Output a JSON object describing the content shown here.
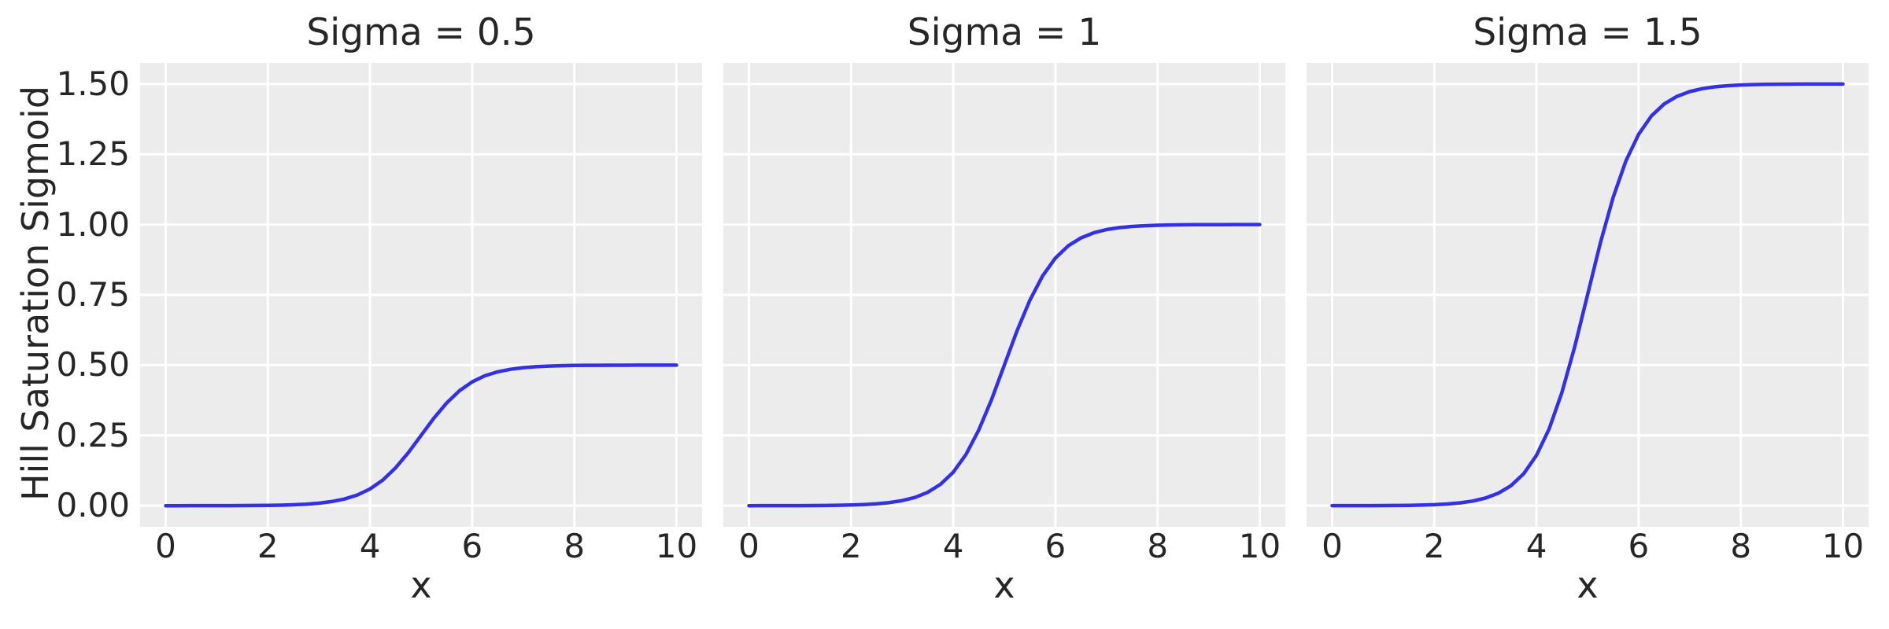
{
  "chart_data": {
    "type": "line",
    "subplot_layout": "1 row x 3 columns, shared y-axis",
    "x_label": "x",
    "y_label": "Hill Saturation Sigmoid",
    "x_ticks": [
      0,
      2,
      4,
      6,
      8,
      10
    ],
    "x_tick_labels": [
      "0",
      "2",
      "4",
      "6",
      "8",
      "10"
    ],
    "y_ticks": [
      0,
      0.25,
      0.5,
      0.75,
      1.0,
      1.25,
      1.5
    ],
    "y_tick_labels": [
      "0.00",
      "0.25",
      "0.50",
      "0.75",
      "1.00",
      "1.25",
      "1.50"
    ],
    "xlim": [
      -0.5,
      10.5
    ],
    "ylim": [
      -0.075,
      1.575
    ],
    "grid": true,
    "legend": "none",
    "style": {
      "figure_bg": "#ffffff",
      "plot_bg": "#ececec",
      "grid_color": "#ffffff",
      "line_color": "#3430e3",
      "text_color": "#262626"
    },
    "x": [
      0,
      0.25,
      0.5,
      0.75,
      1,
      1.25,
      1.5,
      1.75,
      2,
      2.25,
      2.5,
      2.75,
      3,
      3.25,
      3.5,
      3.75,
      4,
      4.25,
      4.5,
      4.75,
      5,
      5.25,
      5.5,
      5.75,
      6,
      6.25,
      6.5,
      6.75,
      7,
      7.25,
      7.5,
      7.75,
      8,
      8.25,
      8.5,
      8.75,
      9,
      9.25,
      9.5,
      9.75,
      10
    ],
    "subplots": [
      {
        "title": "Sigma = 0.5",
        "sigma": 0.5,
        "y": [
          0.0,
          0.0,
          0.0001,
          0.0001,
          0.0002,
          0.0003,
          0.0005,
          0.0007,
          0.0012,
          0.002,
          0.0033,
          0.0055,
          0.009,
          0.0147,
          0.0237,
          0.0379,
          0.0596,
          0.0912,
          0.1345,
          0.1888,
          0.25,
          0.3112,
          0.3655,
          0.4088,
          0.4404,
          0.4621,
          0.4763,
          0.4853,
          0.491,
          0.4945,
          0.4967,
          0.498,
          0.4988,
          0.4993,
          0.4995,
          0.4997,
          0.4998,
          0.4999,
          0.4999,
          0.5,
          0.5
        ]
      },
      {
        "title": "Sigma = 1",
        "sigma": 1,
        "y": [
          0.0,
          0.0001,
          0.0001,
          0.0002,
          0.0003,
          0.0006,
          0.0009,
          0.0015,
          0.0025,
          0.0041,
          0.0067,
          0.011,
          0.018,
          0.0293,
          0.0474,
          0.0759,
          0.1192,
          0.1824,
          0.2689,
          0.3775,
          0.5,
          0.6225,
          0.7311,
          0.8176,
          0.8808,
          0.9241,
          0.9526,
          0.9707,
          0.982,
          0.989,
          0.9933,
          0.9959,
          0.9975,
          0.9985,
          0.9991,
          0.9994,
          0.9997,
          0.9998,
          0.9999,
          0.9999,
          1.0
        ]
      },
      {
        "title": "Sigma = 1.5",
        "sigma": 1.5,
        "y": [
          0.0001,
          0.0001,
          0.0002,
          0.0003,
          0.0005,
          0.0008,
          0.0014,
          0.0022,
          0.0037,
          0.0061,
          0.01,
          0.0165,
          0.027,
          0.044,
          0.0711,
          0.1138,
          0.1788,
          0.2736,
          0.4034,
          0.5663,
          0.75,
          0.9337,
          1.0966,
          1.2264,
          1.3212,
          1.3862,
          1.4289,
          1.456,
          1.473,
          1.4835,
          1.49,
          1.4939,
          1.4963,
          1.4978,
          1.4986,
          1.4992,
          1.4995,
          1.4997,
          1.4998,
          1.4999,
          1.4999
        ]
      }
    ]
  }
}
